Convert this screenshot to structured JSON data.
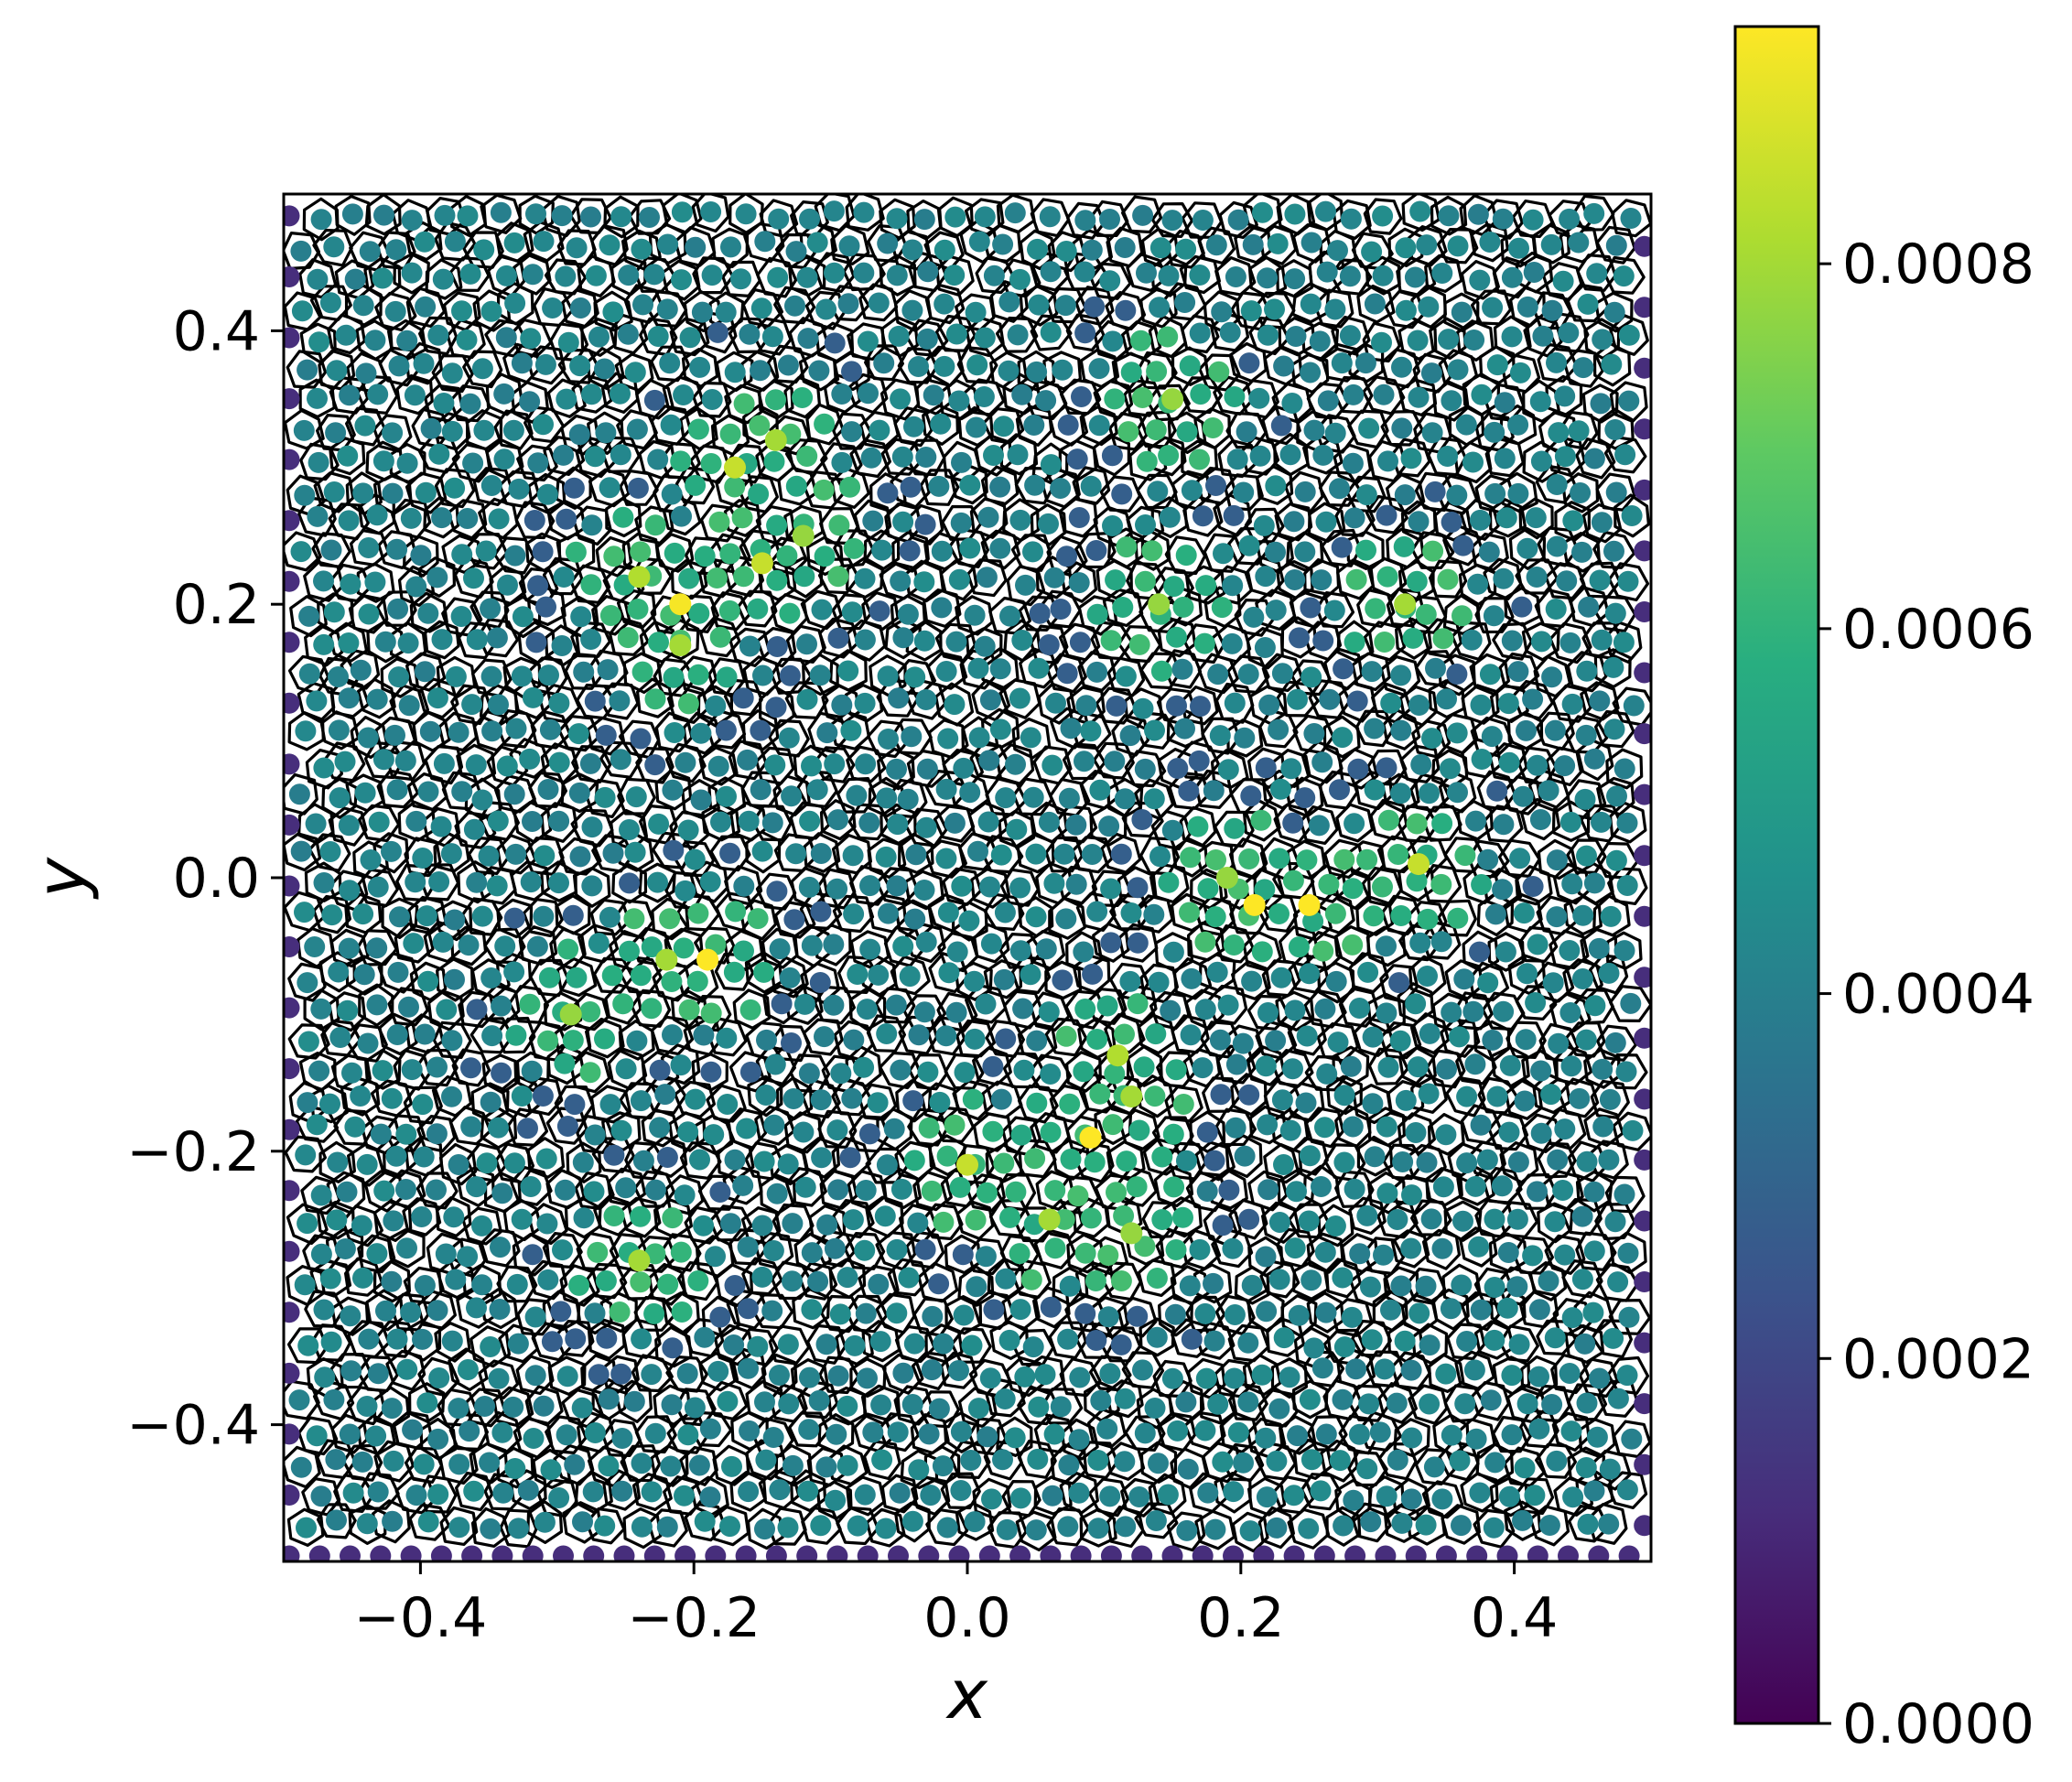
{
  "chart_data": {
    "type": "scatter",
    "title": "",
    "xlabel": "x",
    "ylabel": "y",
    "xlim": [
      -0.5,
      0.5
    ],
    "ylim": [
      -0.5,
      0.5
    ],
    "xticks": [
      -0.4,
      -0.2,
      0.0,
      0.2,
      0.4
    ],
    "yticks": [
      -0.4,
      -0.2,
      0.0,
      0.2,
      0.4
    ],
    "xtick_labels": [
      "−0.4",
      "−0.2",
      "0.0",
      "0.2",
      "0.4"
    ],
    "ytick_labels": [
      "−0.4",
      "−0.2",
      "0.0",
      "0.2",
      "0.4"
    ],
    "grid": false,
    "overlay": "voronoi-cell-edges",
    "colormap": "viridis",
    "colorbar": {
      "range": [
        0.0,
        0.00093
      ],
      "ticks": [
        0.0,
        0.0002,
        0.0004,
        0.0006,
        0.0008
      ],
      "tick_labels": [
        "0.0000",
        "0.0002",
        "0.0004",
        "0.0006",
        "0.0008"
      ]
    },
    "points_note": "regular lattice of ~2000 sites in the unit square; typical value ≈0.00045, boundary sites ≈0.0001",
    "highlight_points": [
      {
        "x": -0.21,
        "y": 0.2,
        "value": 0.00092
      },
      {
        "x": -0.17,
        "y": 0.3,
        "value": 0.00085
      },
      {
        "x": -0.15,
        "y": 0.23,
        "value": 0.00085
      },
      {
        "x": -0.24,
        "y": 0.22,
        "value": 0.00082
      },
      {
        "x": -0.21,
        "y": 0.17,
        "value": 0.0008
      },
      {
        "x": -0.14,
        "y": 0.32,
        "value": 0.0008
      },
      {
        "x": -0.12,
        "y": 0.25,
        "value": 0.00078
      },
      {
        "x": 0.21,
        "y": -0.02,
        "value": 0.00093
      },
      {
        "x": 0.25,
        "y": -0.02,
        "value": 0.00093
      },
      {
        "x": 0.19,
        "y": 0.0,
        "value": 0.00078
      },
      {
        "x": 0.33,
        "y": 0.01,
        "value": 0.00085
      },
      {
        "x": 0.32,
        "y": 0.2,
        "value": 0.0008
      },
      {
        "x": 0.09,
        "y": -0.19,
        "value": 0.00093
      },
      {
        "x": 0.11,
        "y": -0.13,
        "value": 0.00082
      },
      {
        "x": 0.0,
        "y": -0.21,
        "value": 0.00085
      },
      {
        "x": 0.12,
        "y": -0.16,
        "value": 0.0008
      },
      {
        "x": -0.19,
        "y": -0.06,
        "value": 0.00093
      },
      {
        "x": -0.22,
        "y": -0.06,
        "value": 0.0008
      },
      {
        "x": -0.24,
        "y": -0.28,
        "value": 0.0008
      },
      {
        "x": 0.06,
        "y": -0.25,
        "value": 0.0008
      },
      {
        "x": 0.12,
        "y": -0.26,
        "value": 0.00078
      },
      {
        "x": 0.14,
        "y": 0.2,
        "value": 0.00078
      },
      {
        "x": 0.15,
        "y": 0.35,
        "value": 0.00078
      },
      {
        "x": -0.29,
        "y": -0.1,
        "value": 0.00078
      }
    ]
  }
}
